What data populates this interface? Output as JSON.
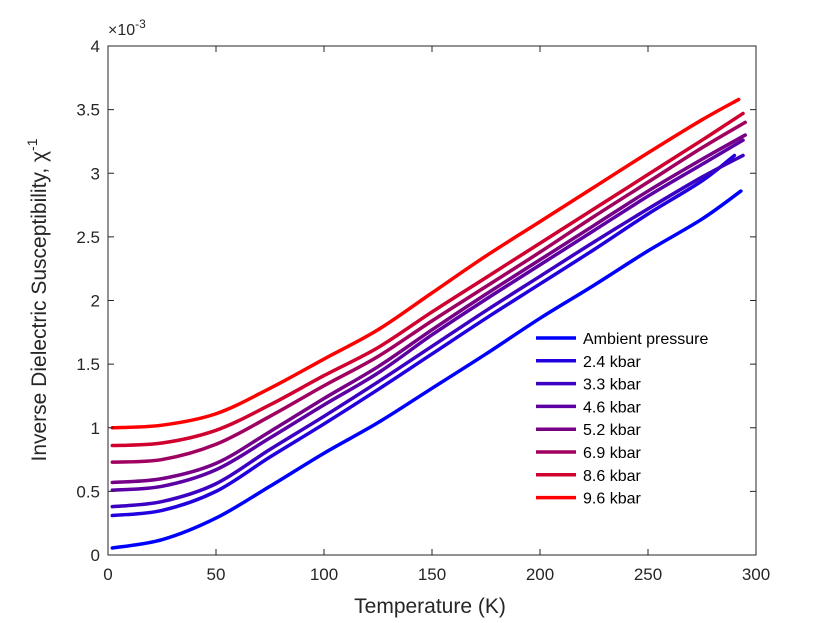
{
  "chart_data": {
    "type": "line",
    "title": "",
    "xlabel": "Temperature (K)",
    "ylabel": "Inverse Dielectric Susceptibility, χ",
    "ylabel_superscript": "-1",
    "y_exponent_prefix": "×10",
    "y_exponent_power": "-3",
    "xlim": [
      0,
      300
    ],
    "ylim": [
      0,
      4
    ],
    "xticks": [
      "0",
      "50",
      "100",
      "150",
      "200",
      "250",
      "300"
    ],
    "yticks": [
      "0",
      "0.5",
      "1",
      "1.5",
      "2",
      "2.5",
      "3",
      "3.5",
      "4"
    ],
    "legend_position": "bottom-right",
    "x": [
      2,
      25,
      50,
      75,
      100,
      125,
      150,
      175,
      200,
      225,
      250,
      275,
      293
    ],
    "series": [
      {
        "name": "Ambient pressure",
        "color": "#0000ff",
        "end_x": 293,
        "values": [
          0.055,
          0.12,
          0.29,
          0.54,
          0.8,
          1.04,
          1.31,
          1.58,
          1.86,
          2.12,
          2.39,
          2.64,
          2.86
        ]
      },
      {
        "name": "2.4 kbar",
        "color": "#2000df",
        "end_x": 290,
        "values": [
          0.31,
          0.35,
          0.5,
          0.77,
          1.03,
          1.3,
          1.58,
          1.86,
          2.13,
          2.4,
          2.68,
          2.94,
          3.14
        ]
      },
      {
        "name": "3.3 kbar",
        "color": "#3c00c3",
        "end_x": 294,
        "values": [
          0.38,
          0.42,
          0.56,
          0.83,
          1.09,
          1.36,
          1.64,
          1.92,
          2.19,
          2.46,
          2.72,
          2.97,
          3.14
        ]
      },
      {
        "name": "4.6 kbar",
        "color": "#5c00a3",
        "end_x": 294,
        "values": [
          0.51,
          0.54,
          0.67,
          0.92,
          1.18,
          1.43,
          1.73,
          2.01,
          2.28,
          2.55,
          2.82,
          3.07,
          3.26
        ]
      },
      {
        "name": "5.2 kbar",
        "color": "#780087",
        "end_x": 295,
        "values": [
          0.57,
          0.6,
          0.72,
          0.97,
          1.23,
          1.48,
          1.77,
          2.05,
          2.32,
          2.59,
          2.86,
          3.11,
          3.3
        ]
      },
      {
        "name": "6.9 kbar",
        "color": "#a00060",
        "end_x": 295,
        "values": [
          0.73,
          0.75,
          0.87,
          1.09,
          1.33,
          1.56,
          1.84,
          2.11,
          2.38,
          2.66,
          2.93,
          3.2,
          3.4
        ]
      },
      {
        "name": "8.6 kbar",
        "color": "#d0002f",
        "end_x": 294,
        "values": [
          0.86,
          0.88,
          0.98,
          1.18,
          1.41,
          1.63,
          1.91,
          2.18,
          2.45,
          2.72,
          2.99,
          3.26,
          3.47
        ]
      },
      {
        "name": "9.6 kbar",
        "color": "#ff0000",
        "end_x": 292,
        "values": [
          1.0,
          1.02,
          1.11,
          1.31,
          1.54,
          1.77,
          2.06,
          2.35,
          2.62,
          2.89,
          3.16,
          3.42,
          3.58
        ]
      }
    ]
  }
}
